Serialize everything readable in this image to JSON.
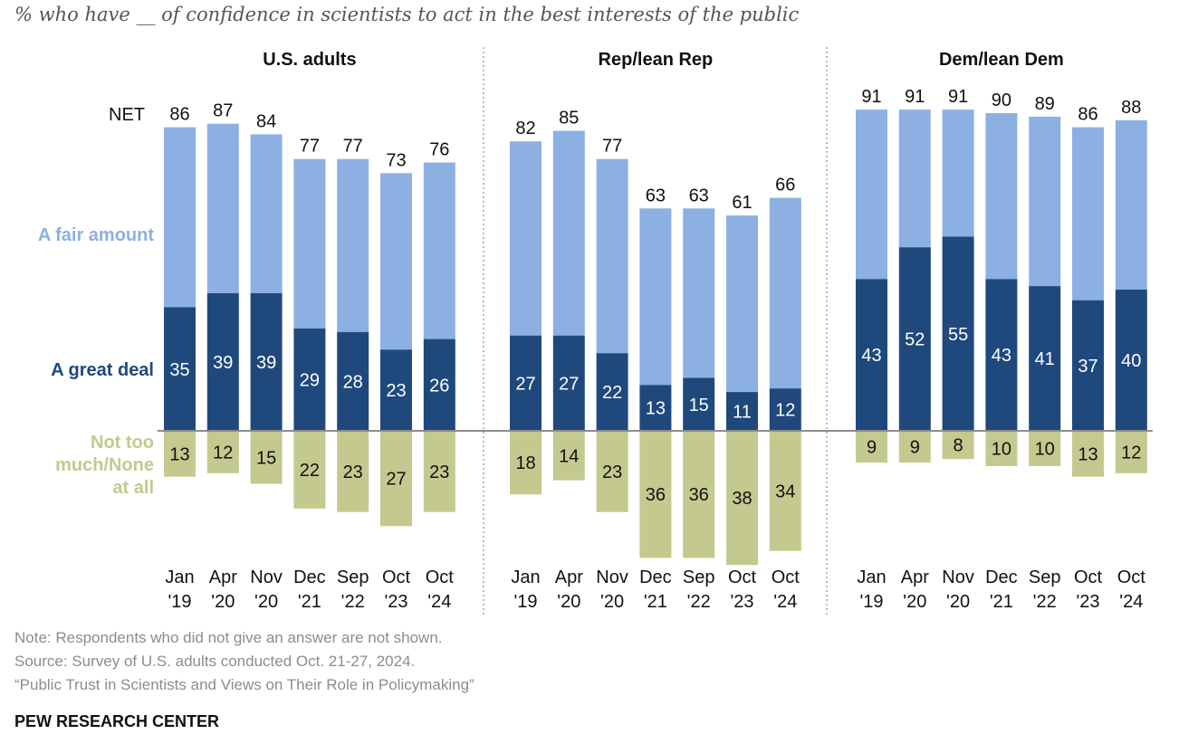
{
  "subtitle": "% who have __ of confidence in scientists to act in the best interests of the public",
  "colors": {
    "great_deal": "#1f497d",
    "fair_amount": "#8db0e2",
    "not_too_much": "#c4c98f",
    "net_label": "#111111",
    "fair_label": "#8db0e2",
    "great_label": "#1f497d",
    "not_label": "#c4c98f"
  },
  "chart_data": {
    "type": "bar",
    "stacking": "diverging",
    "row_labels": {
      "net": "NET",
      "fair_amount": "A fair amount",
      "great_deal": "A great deal",
      "not_too_much": [
        "Not too",
        "much/None",
        "at all"
      ]
    },
    "categories": [
      [
        "Jan",
        "'19"
      ],
      [
        "Apr",
        "'20"
      ],
      [
        "Nov",
        "'20"
      ],
      [
        "Dec",
        "'21"
      ],
      [
        "Sep",
        "'22"
      ],
      [
        "Oct",
        "'23"
      ],
      [
        "Oct",
        "'24"
      ]
    ],
    "panels": [
      {
        "title": "U.S. adults",
        "net": [
          86,
          87,
          84,
          77,
          77,
          73,
          76
        ],
        "great_deal": [
          35,
          39,
          39,
          29,
          28,
          23,
          26
        ],
        "not_too_much": [
          13,
          12,
          15,
          22,
          23,
          27,
          23
        ]
      },
      {
        "title": "Rep/lean Rep",
        "net": [
          82,
          85,
          77,
          63,
          63,
          61,
          66
        ],
        "great_deal": [
          27,
          27,
          22,
          13,
          15,
          11,
          12
        ],
        "not_too_much": [
          18,
          14,
          23,
          36,
          36,
          38,
          34
        ]
      },
      {
        "title": "Dem/lean Dem",
        "net": [
          91,
          91,
          91,
          90,
          89,
          86,
          88
        ],
        "great_deal": [
          43,
          52,
          55,
          43,
          41,
          37,
          40
        ],
        "not_too_much": [
          9,
          9,
          8,
          10,
          10,
          13,
          12
        ]
      }
    ]
  },
  "notes": [
    "Note: Respondents who did not give an answer are not shown.",
    "Source: Survey of U.S. adults conducted Oct. 21-27, 2024.",
    "“Public Trust in Scientists and Views on Their Role in Policymaking”"
  ],
  "brand": "PEW RESEARCH CENTER"
}
